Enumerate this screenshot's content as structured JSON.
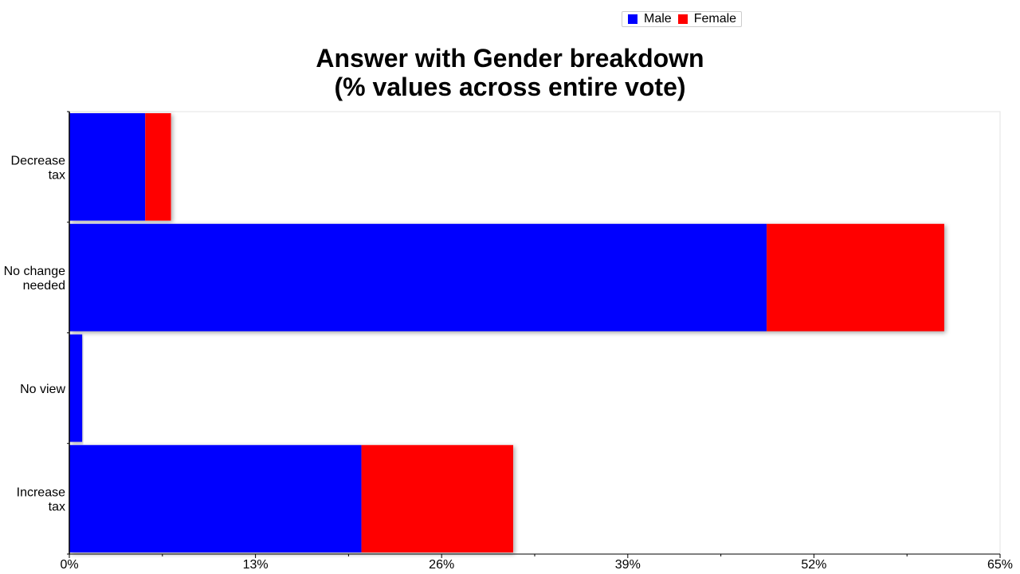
{
  "legend": {
    "items": [
      {
        "label": "Male",
        "color": "#0000ff"
      },
      {
        "label": "Female",
        "color": "#ff0000"
      }
    ]
  },
  "chart_data": {
    "type": "bar",
    "orientation": "horizontal",
    "stacked": true,
    "title": [
      "Answer with Gender breakdown",
      "(% values across entire vote)"
    ],
    "categories": [
      [
        "Decrease",
        "tax"
      ],
      [
        "No change",
        "needed"
      ],
      [
        "No view"
      ],
      [
        "Increase",
        "tax"
      ]
    ],
    "series": [
      {
        "name": "Male",
        "color": "#0000ff",
        "values": [
          5.3,
          48.7,
          0.9,
          20.4
        ]
      },
      {
        "name": "Female",
        "color": "#ff0000",
        "values": [
          1.8,
          12.4,
          0.0,
          10.6
        ]
      }
    ],
    "xlim": [
      0,
      65
    ],
    "xticks": [
      "0%",
      "13%",
      "26%",
      "39%",
      "52%",
      "65%"
    ],
    "xtick_values": [
      0,
      13,
      26,
      39,
      52,
      65
    ],
    "minor_xtick_values": [
      6.5,
      19.5,
      32.5,
      45.5,
      58.5
    ],
    "legend_position": "top-right",
    "grid": false
  }
}
